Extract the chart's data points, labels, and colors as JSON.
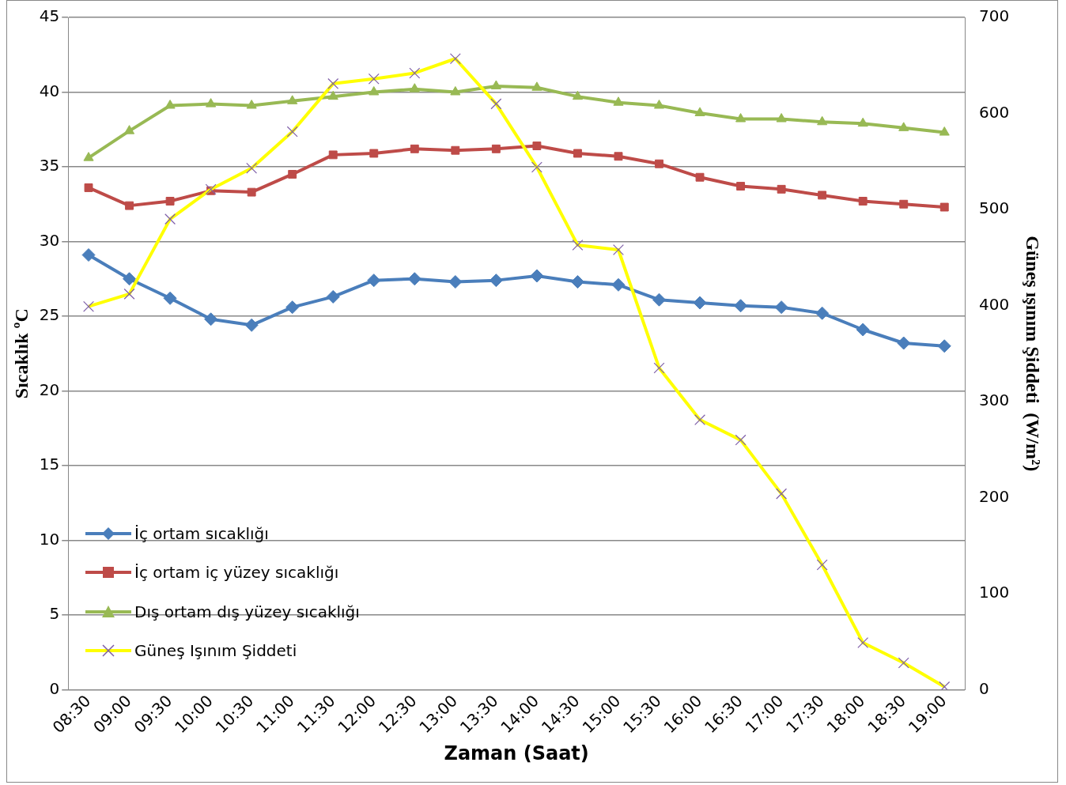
{
  "chart_data": {
    "type": "line",
    "xlabel": "Zaman (Saat)",
    "ylabel": "Sıcaklık ºC",
    "y2label": "Güneş ışınım Şiddeti  (W/m²)",
    "categories": [
      "08:30",
      "09:00",
      "09:30",
      "10:00",
      "10:30",
      "11:00",
      "11:30",
      "12:00",
      "12:30",
      "13:00",
      "13:30",
      "14:00",
      "14:30",
      "15:00",
      "15:30",
      "16:00",
      "16:30",
      "17:00",
      "17:30",
      "18:00",
      "18:30",
      "19:00"
    ],
    "series": [
      {
        "name": "İç ortam sıcaklığı",
        "color": "#4a7ebb",
        "marker": "diamond",
        "values": [
          29.1,
          27.5,
          26.2,
          24.8,
          24.4,
          25.6,
          26.3,
          27.4,
          27.5,
          27.3,
          27.4,
          27.7,
          27.3,
          27.1,
          26.1,
          25.9,
          25.7,
          25.6,
          25.2,
          24.1,
          23.2,
          23.0
        ]
      },
      {
        "name": "İç ortam iç yüzey sıcaklığı",
        "color": "#be4b48",
        "marker": "square",
        "values": [
          33.6,
          32.4,
          32.7,
          33.4,
          33.3,
          34.5,
          35.8,
          35.9,
          36.2,
          36.1,
          36.2,
          36.4,
          35.9,
          35.7,
          35.2,
          34.3,
          33.7,
          33.5,
          33.1,
          32.7,
          32.5,
          32.3
        ]
      },
      {
        "name": "Dış ortam dış yüzey sıcaklığı",
        "color": "#98b954",
        "marker": "triangle",
        "values": [
          35.6,
          37.4,
          39.1,
          39.2,
          39.1,
          39.4,
          39.7,
          40.0,
          40.2,
          40.0,
          40.4,
          40.3,
          39.7,
          39.3,
          39.1,
          38.6,
          38.2,
          38.2,
          38.0,
          37.9,
          37.6,
          37.3
        ]
      },
      {
        "name": "Güneş Işınım Şiddeti",
        "color": "#ffff00",
        "marker": "cross",
        "axis": "y2",
        "values": [
          399,
          412,
          490,
          521,
          543,
          581,
          631,
          636,
          642,
          657,
          610,
          544,
          463,
          458,
          335,
          281,
          260,
          204,
          130,
          49,
          28,
          3
        ]
      }
    ],
    "ylim": [
      0,
      45
    ],
    "yticks": [
      0,
      5,
      10,
      15,
      20,
      25,
      30,
      35,
      40,
      45
    ],
    "y2lim": [
      0,
      700
    ],
    "y2ticks": [
      0,
      100,
      200,
      300,
      400,
      500,
      600,
      700
    ],
    "grid": "y",
    "legend": "bottom left",
    "line_style": "solid"
  }
}
